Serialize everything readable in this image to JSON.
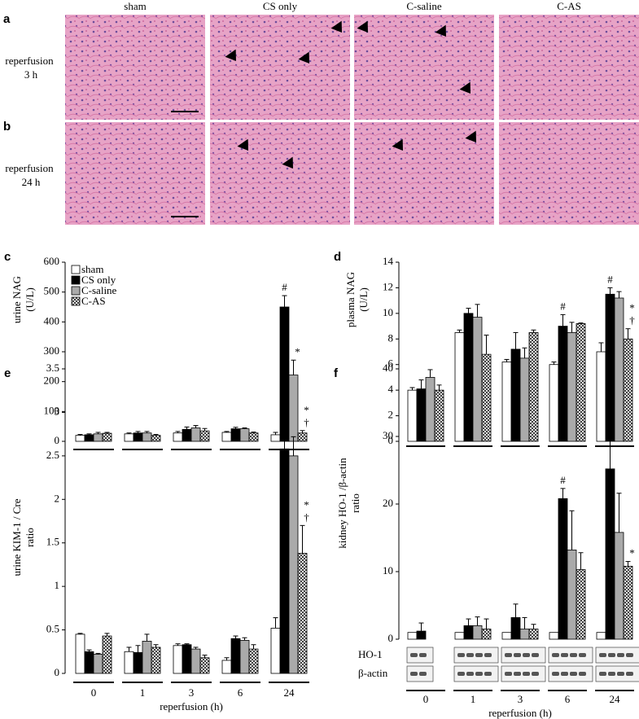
{
  "columns": [
    "sham",
    "CS only",
    "C-saline",
    "C-AS"
  ],
  "rows": [
    {
      "panel": "a",
      "label": [
        "reperfusion",
        "3 h"
      ]
    },
    {
      "panel": "b",
      "label": [
        "reperfusion",
        "24 h"
      ]
    }
  ],
  "chart_data": [
    {
      "type": "bar",
      "panel": "c",
      "ylabel": [
        "urine NAG",
        "(U/L)"
      ],
      "legend": "top-left",
      "categories": [
        null,
        null,
        null,
        null,
        null
      ],
      "ylim": [
        0,
        600
      ],
      "yticks": [
        0,
        100,
        200,
        300,
        400,
        500,
        600
      ],
      "series": [
        {
          "name": "sham",
          "color": "#ffffff",
          "values": [
            20,
            25,
            28,
            30,
            22
          ],
          "errors": [
            3,
            3,
            5,
            3,
            8
          ]
        },
        {
          "name": "CS only",
          "color": "#000000",
          "values": [
            22,
            28,
            40,
            42,
            450
          ],
          "errors": [
            3,
            5,
            8,
            5,
            38
          ]
        },
        {
          "name": "C-saline",
          "color": "#aaaaaa",
          "values": [
            25,
            28,
            45,
            42,
            222
          ],
          "errors": [
            5,
            5,
            8,
            3,
            50
          ]
        },
        {
          "name": "C-AS",
          "color": "#ffffff",
          "hatch": "cross",
          "values": [
            27,
            20,
            35,
            28,
            28
          ],
          "errors": [
            3,
            3,
            8,
            3,
            8
          ]
        }
      ],
      "annotations": [
        {
          "text": "#",
          "series": 1,
          "category": 4
        },
        {
          "text": "*",
          "series": 2,
          "category": 4
        },
        {
          "text": "†",
          "series": 3,
          "category": 4
        },
        {
          "text": "*",
          "series": 3,
          "category": 4
        }
      ]
    },
    {
      "type": "bar",
      "panel": "d",
      "ylabel": [
        "plasma NAG",
        "(U/L)"
      ],
      "categories": [
        null,
        null,
        null,
        null,
        null
      ],
      "ylim": [
        0,
        14
      ],
      "yticks": [
        0,
        2,
        4,
        6,
        8,
        10,
        12,
        14
      ],
      "series": [
        {
          "name": "sham",
          "color": "#ffffff",
          "values": [
            4.0,
            8.5,
            6.2,
            6.0,
            7.0
          ],
          "errors": [
            0.2,
            0.2,
            0.2,
            0.2,
            0.7
          ]
        },
        {
          "name": "CS only",
          "color": "#000000",
          "values": [
            4.1,
            10.0,
            7.2,
            9.0,
            11.5
          ],
          "errors": [
            0.7,
            0.4,
            1.3,
            0.9,
            0.5
          ]
        },
        {
          "name": "C-saline",
          "color": "#aaaaaa",
          "values": [
            5.0,
            9.7,
            6.5,
            8.5,
            11.2
          ],
          "errors": [
            0.6,
            1.0,
            0.8,
            0.8,
            0.5
          ]
        },
        {
          "name": "C-AS",
          "color": "#ffffff",
          "hatch": "cross",
          "values": [
            4.0,
            6.8,
            8.5,
            9.2,
            8.0
          ],
          "errors": [
            0.4,
            1.5,
            0.2,
            0.05,
            0.8
          ]
        }
      ],
      "annotations": [
        {
          "text": "#",
          "series": 1,
          "category": 3
        },
        {
          "text": "#",
          "series": 1,
          "category": 4
        },
        {
          "text": "†",
          "series": 3,
          "category": 4
        },
        {
          "text": "*",
          "series": 3,
          "category": 4
        }
      ]
    },
    {
      "type": "bar",
      "panel": "e",
      "ylabel": [
        "urine KIM-1 / Cre",
        "ratio"
      ],
      "xlabel": "reperfusion (h)",
      "categories": [
        "0",
        "1",
        "3",
        "6",
        "24"
      ],
      "ylim": [
        0,
        3.5
      ],
      "yticks": [
        0,
        0.5,
        1,
        1.5,
        2,
        2.5,
        3,
        3.5
      ],
      "series": [
        {
          "name": "sham",
          "color": "#ffffff",
          "values": [
            0.45,
            0.25,
            0.32,
            0.15,
            0.52
          ],
          "errors": [
            0.01,
            0.05,
            0.02,
            0.03,
            0.12
          ]
        },
        {
          "name": "CS only",
          "color": "#000000",
          "values": [
            0.25,
            0.24,
            0.33,
            0.4,
            2.58
          ],
          "errors": [
            0.02,
            0.08,
            0.01,
            0.03,
            0.45
          ]
        },
        {
          "name": "C-saline",
          "color": "#aaaaaa",
          "values": [
            0.22,
            0.37,
            0.28,
            0.38,
            2.5
          ],
          "errors": [
            0.01,
            0.08,
            0.02,
            0.03,
            0.22
          ]
        },
        {
          "name": "C-AS",
          "color": "#ffffff",
          "hatch": "cross",
          "values": [
            0.43,
            0.3,
            0.18,
            0.28,
            1.38
          ],
          "errors": [
            0.03,
            0.03,
            0.03,
            0.05,
            0.32
          ]
        }
      ],
      "annotations": [
        {
          "text": "#",
          "series": 1,
          "category": 4
        },
        {
          "text": "†",
          "series": 3,
          "category": 4
        },
        {
          "text": "*",
          "series": 3,
          "category": 4
        }
      ]
    },
    {
      "type": "bar",
      "panel": "f",
      "ylabel": [
        "kidney HO-1 /β-actin",
        "ratio"
      ],
      "xlabel": "reperfusion (h)",
      "blot_labels": [
        "HO-1",
        "β-actin"
      ],
      "categories": [
        "0",
        "1",
        "3",
        "6",
        "24"
      ],
      "ylim": [
        0,
        40
      ],
      "yticks": [
        0,
        10,
        20,
        30,
        40
      ],
      "series": [
        {
          "name": "sham",
          "color": "#ffffff",
          "values": [
            1,
            1,
            1,
            1,
            1
          ],
          "errors": [
            0,
            0,
            0,
            0,
            0
          ]
        },
        {
          "name": "CS only",
          "color": "#000000",
          "values": [
            1.2,
            2.0,
            3.2,
            20.8,
            25.2
          ],
          "errors": [
            1.2,
            1.0,
            2.0,
            1.5,
            10.5
          ]
        },
        {
          "name": "C-saline",
          "color": "#aaaaaa",
          "values": [
            null,
            2.0,
            1.5,
            13.2,
            15.8
          ],
          "errors": [
            null,
            1.3,
            1.7,
            5.8,
            5.8
          ]
        },
        {
          "name": "C-AS",
          "color": "#ffffff",
          "hatch": "cross",
          "values": [
            null,
            1.5,
            1.5,
            10.3,
            10.8
          ],
          "errors": [
            null,
            1.5,
            0.7,
            2.5,
            0.7
          ]
        }
      ],
      "annotations": [
        {
          "text": "#",
          "series": 1,
          "category": 3
        },
        {
          "text": "#",
          "series": 1,
          "category": 4
        },
        {
          "text": "*",
          "series": 3,
          "category": 4
        }
      ]
    }
  ]
}
